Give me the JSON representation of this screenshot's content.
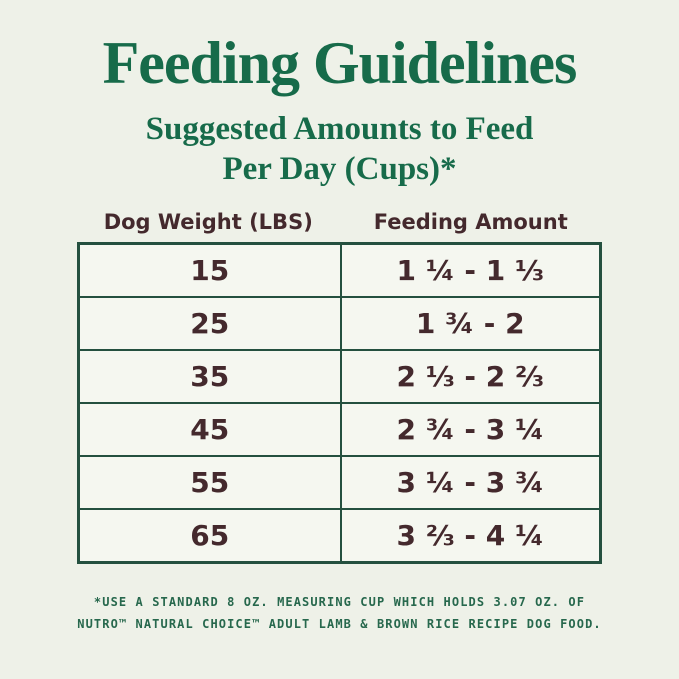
{
  "header": {
    "title": "Feeding Guidelines",
    "subtitle_lines": [
      "Suggested Amounts to Feed",
      "Per Day (Cups)*"
    ]
  },
  "table": {
    "columns": [
      "Dog Weight (LBS)",
      "Feeding Amount"
    ],
    "rows": [
      {
        "weight": "15",
        "amount": "1 ¼ - 1 ⅓"
      },
      {
        "weight": "25",
        "amount": "1 ¾ - 2"
      },
      {
        "weight": "35",
        "amount": "2 ⅓ - 2 ⅔"
      },
      {
        "weight": "45",
        "amount": "2 ¾ - 3 ¼"
      },
      {
        "weight": "55",
        "amount": "3 ¼ - 3 ¾"
      },
      {
        "weight": "65",
        "amount": "3 ⅔ - 4 ¼"
      }
    ]
  },
  "footnote": {
    "lines": [
      "*USE A STANDARD 8 OZ. MEASURING CUP WHICH HOLDS 3.07 OZ. OF",
      "NUTRO™ NATURAL CHOICE™ ADULT LAMB & BROWN RICE RECIPE DOG FOOD."
    ]
  },
  "colors": {
    "background": "#eef1e8",
    "cell_background": "#f5f7f0",
    "title_green": "#176b4a",
    "border_green": "#24503f",
    "text_brown": "#44292d",
    "footnote_green": "#27684d"
  }
}
